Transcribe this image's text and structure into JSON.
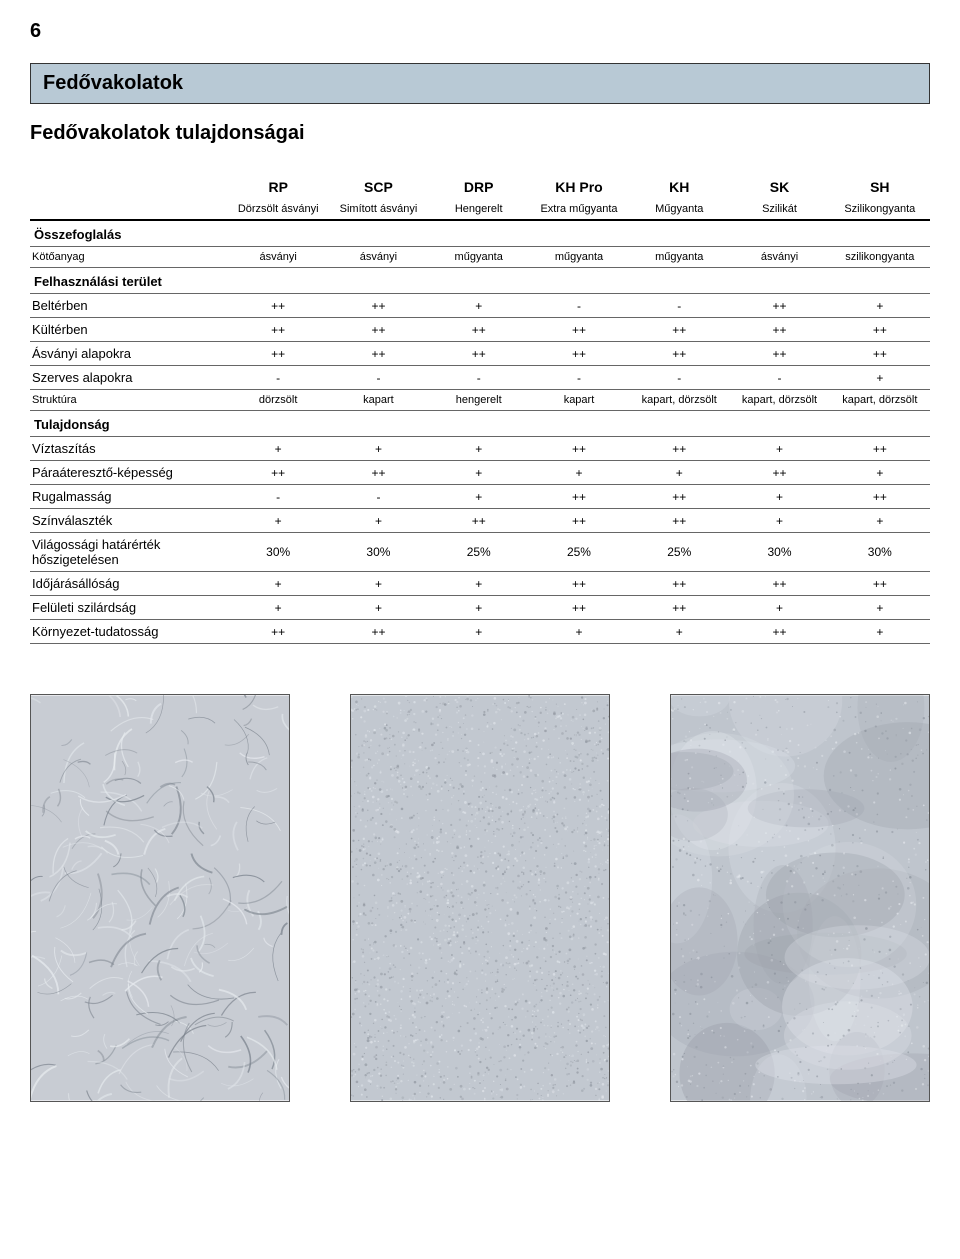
{
  "page_number": "6",
  "header": "Fedővakolatok",
  "subtitle": "Fedővakolatok tulajdonságai",
  "columns": [
    {
      "main": "RP",
      "sub": "Dörzsölt ásványi"
    },
    {
      "main": "SCP",
      "sub": "Simított ásványi"
    },
    {
      "main": "DRP",
      "sub": "Hengerelt"
    },
    {
      "main": "KH Pro",
      "sub": "Extra műgyanta"
    },
    {
      "main": "KH",
      "sub": "Műgyanta"
    },
    {
      "main": "SK",
      "sub": "Szilikát"
    },
    {
      "main": "SH",
      "sub": "Szilikongyanta"
    }
  ],
  "sections": [
    {
      "title": "Összefoglalás",
      "rows": [
        {
          "label": "Kötőanyag",
          "small": true,
          "values": [
            "ásványi",
            "ásványi",
            "műgyanta",
            "műgyanta",
            "műgyanta",
            "ásványi",
            "szilikongyanta"
          ]
        }
      ]
    },
    {
      "title": "Felhasználási terület",
      "rows": [
        {
          "label": "Beltérben",
          "values": [
            "++",
            "++",
            "+",
            "-",
            "-",
            "++",
            "+"
          ]
        },
        {
          "label": "Kültérben",
          "values": [
            "++",
            "++",
            "++",
            "++",
            "++",
            "++",
            "++"
          ]
        },
        {
          "label": "Ásványi alapokra",
          "values": [
            "++",
            "++",
            "++",
            "++",
            "++",
            "++",
            "++"
          ]
        },
        {
          "label": "Szerves alapokra",
          "values": [
            "-",
            "-",
            "-",
            "-",
            "-",
            "-",
            "+"
          ]
        },
        {
          "label": "Struktúra",
          "small": true,
          "values": [
            "dörzsölt",
            "kapart",
            "hengerelt",
            "kapart",
            "kapart, dörzsölt",
            "kapart, dörzsölt",
            "kapart, dörzsölt"
          ]
        }
      ]
    },
    {
      "title": "Tulajdonság",
      "rows": [
        {
          "label": "Víztaszítás",
          "values": [
            "+",
            "+",
            "+",
            "++",
            "++",
            "+",
            "++"
          ]
        },
        {
          "label": "Páraáteresztő-képesség",
          "values": [
            "++",
            "++",
            "+",
            "+",
            "+",
            "++",
            "+"
          ]
        },
        {
          "label": "Rugalmasság",
          "values": [
            "-",
            "-",
            "+",
            "++",
            "++",
            "+",
            "++"
          ]
        },
        {
          "label": "Színválaszték",
          "values": [
            "+",
            "+",
            "++",
            "++",
            "++",
            "+",
            "+"
          ]
        },
        {
          "label": "Világossági határérték hőszigetelésen",
          "values": [
            "30%",
            "30%",
            "25%",
            "25%",
            "25%",
            "30%",
            "30%"
          ]
        },
        {
          "label": "Időjárásállóság",
          "values": [
            "+",
            "+",
            "+",
            "++",
            "++",
            "++",
            "++"
          ]
        },
        {
          "label": "Felületi szilárdság",
          "values": [
            "+",
            "+",
            "+",
            "++",
            "++",
            "+",
            "+"
          ]
        },
        {
          "label": "Környezet-tudatosság",
          "values": [
            "++",
            "++",
            "+",
            "+",
            "+",
            "++",
            "+"
          ]
        }
      ]
    }
  ],
  "texture_images": [
    {
      "name": "texture-scratched",
      "seed": 1,
      "pattern": "scratch",
      "bg": "#c8ccd3"
    },
    {
      "name": "texture-grainy",
      "seed": 2,
      "pattern": "grain",
      "bg": "#c2c8d0"
    },
    {
      "name": "texture-bumpy",
      "seed": 3,
      "pattern": "bump",
      "bg": "#bfc5cd"
    }
  ],
  "colors": {
    "header_bg": "#b8c9d5",
    "border": "#333333",
    "page_bg": "#ffffff"
  }
}
